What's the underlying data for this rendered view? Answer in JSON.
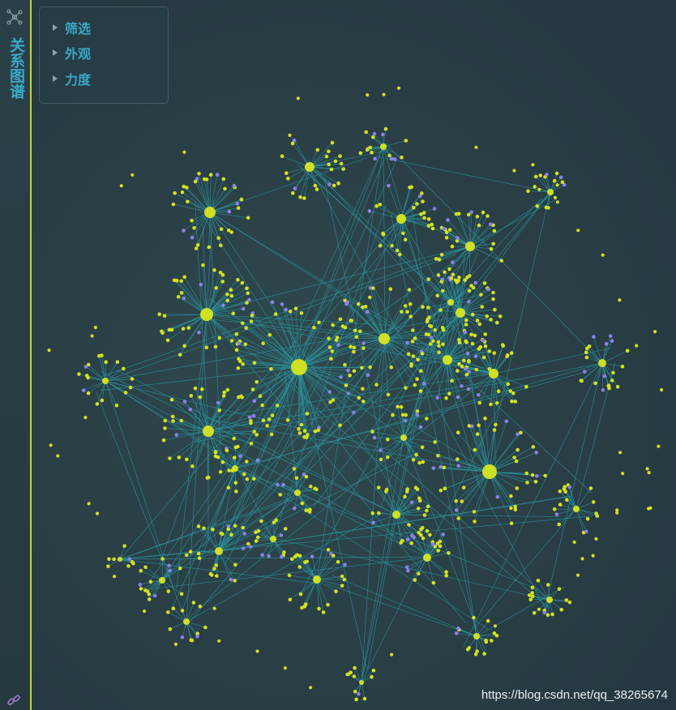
{
  "app": {
    "title": "关系图谱"
  },
  "icons": {
    "logo": "network-graph-icon",
    "footer": "link-icon"
  },
  "menu": {
    "items": [
      {
        "label": "筛选"
      },
      {
        "label": "外观"
      },
      {
        "label": "力度"
      }
    ]
  },
  "graph": {
    "colors": {
      "node": "#d4e21f",
      "node_alt": "#8b82e8",
      "edge": "#2b9aa6",
      "hub": "#cfe025"
    }
  },
  "watermark": "https://blog.csdn.net/qq_38265674"
}
